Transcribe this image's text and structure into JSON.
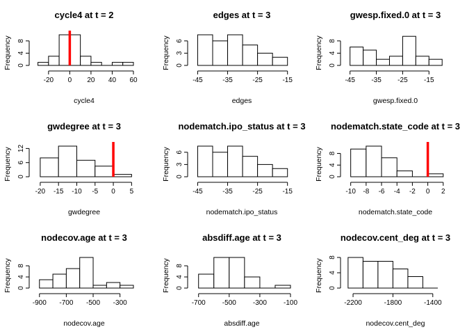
{
  "chart_data": [
    {
      "type": "histogram",
      "title": "cycle4 at t = 2",
      "xlabel": "cycle4",
      "ylabel": "Frequency",
      "bins": [
        [
          -30,
          -20
        ],
        [
          -20,
          -10
        ],
        [
          -10,
          0
        ],
        [
          0,
          10
        ],
        [
          10,
          20
        ],
        [
          20,
          30
        ],
        [
          30,
          40
        ],
        [
          40,
          50
        ],
        [
          50,
          60
        ]
      ],
      "counts": [
        1,
        3,
        10,
        10,
        3,
        1,
        0,
        1,
        1
      ],
      "x_ticks": [
        -20,
        0,
        20,
        40,
        60
      ],
      "y_ticks": [
        0,
        4,
        8
      ],
      "xlim": [
        -33,
        60
      ],
      "ylim": [
        0,
        10
      ],
      "observed_line": 0,
      "observed_line_color": "#ff0000"
    },
    {
      "type": "histogram",
      "title": "edges at t = 3",
      "xlabel": "edges",
      "ylabel": "Frequency",
      "bins": [
        [
          -45,
          -40
        ],
        [
          -40,
          -35
        ],
        [
          -35,
          -30
        ],
        [
          -30,
          -25
        ],
        [
          -25,
          -20
        ],
        [
          -20,
          -15
        ]
      ],
      "counts": [
        7.5,
        6,
        7.5,
        5,
        3,
        2
      ],
      "x_ticks": [
        -45,
        -35,
        -25,
        -15
      ],
      "y_ticks": [
        0,
        3,
        6
      ],
      "xlim": [
        -46.5,
        -14
      ],
      "ylim": [
        0,
        7.5
      ]
    },
    {
      "type": "histogram",
      "title": "gwesp.fixed.0 at t = 3",
      "xlabel": "gwesp.fixed.0",
      "ylabel": "Frequency",
      "bins": [
        [
          -45,
          -40
        ],
        [
          -40,
          -35
        ],
        [
          -35,
          -30
        ],
        [
          -30,
          -25
        ],
        [
          -25,
          -20
        ],
        [
          -20,
          -15
        ],
        [
          -15,
          -10
        ]
      ],
      "counts": [
        6,
        5,
        2,
        3,
        9.5,
        3,
        2
      ],
      "x_ticks": [
        -45,
        -35,
        -25,
        -15
      ],
      "y_ticks": [
        0,
        4,
        8
      ],
      "xlim": [
        -46.5,
        -9
      ],
      "ylim": [
        0,
        10
      ]
    },
    {
      "type": "histogram",
      "title": "gwdegree at t = 3",
      "xlabel": "gwdegree",
      "ylabel": "Frequency",
      "bins": [
        [
          -20,
          -15
        ],
        [
          -15,
          -10
        ],
        [
          -10,
          -5
        ],
        [
          -5,
          0
        ],
        [
          0,
          5
        ]
      ],
      "counts": [
        8,
        13,
        7,
        4.5,
        1
      ],
      "x_ticks": [
        -20,
        -15,
        -10,
        -5,
        0,
        5
      ],
      "y_ticks": [
        0,
        6,
        12
      ],
      "xlim": [
        -21.5,
        5.5
      ],
      "ylim": [
        0,
        13
      ],
      "observed_line": 0,
      "observed_line_color": "#ff0000"
    },
    {
      "type": "histogram",
      "title": "nodematch.ipo_status at t = 3",
      "xlabel": "nodematch.ipo_status",
      "ylabel": "Frequency",
      "bins": [
        [
          -45,
          -40
        ],
        [
          -40,
          -35
        ],
        [
          -35,
          -30
        ],
        [
          -30,
          -25
        ],
        [
          -25,
          -20
        ],
        [
          -20,
          -15
        ]
      ],
      "counts": [
        7.5,
        6,
        7.5,
        5,
        3,
        2
      ],
      "x_ticks": [
        -45,
        -35,
        -25,
        -15
      ],
      "y_ticks": [
        0,
        3,
        6
      ],
      "xlim": [
        -46.5,
        -14
      ],
      "ylim": [
        0,
        7.5
      ]
    },
    {
      "type": "histogram",
      "title": "nodematch.state_code at t = 3",
      "xlabel": "nodematch.state_code",
      "ylabel": "Frequency",
      "bins": [
        [
          -10,
          -8
        ],
        [
          -8,
          -6
        ],
        [
          -6,
          -4
        ],
        [
          -4,
          -2
        ],
        [
          -2,
          0
        ],
        [
          0,
          2
        ]
      ],
      "counts": [
        9.5,
        10.5,
        6.5,
        2,
        0,
        1
      ],
      "x_ticks": [
        -10,
        -8,
        -6,
        -4,
        -2,
        0,
        2
      ],
      "y_ticks": [
        0,
        4,
        8
      ],
      "xlim": [
        -10.6,
        2.2
      ],
      "ylim": [
        0,
        10.5
      ],
      "observed_line": 0,
      "observed_line_color": "#ff0000"
    },
    {
      "type": "histogram",
      "title": "nodecov.age at t = 3",
      "xlabel": "nodecov.age",
      "ylabel": "Frequency",
      "bins": [
        [
          -900,
          -800
        ],
        [
          -800,
          -700
        ],
        [
          -700,
          -600
        ],
        [
          -600,
          -500
        ],
        [
          -500,
          -400
        ],
        [
          -400,
          -300
        ],
        [
          -300,
          -200
        ]
      ],
      "counts": [
        3,
        5,
        7,
        11,
        1,
        2,
        1
      ],
      "x_ticks": [
        -900,
        -700,
        -500,
        -300
      ],
      "y_ticks": [
        0,
        4,
        8
      ],
      "xlim": [
        -935,
        -200
      ],
      "ylim": [
        0,
        11
      ]
    },
    {
      "type": "histogram",
      "title": "absdiff.age at t = 3",
      "xlabel": "absdiff.age",
      "ylabel": "Frequency",
      "bins": [
        [
          -700,
          -600
        ],
        [
          -600,
          -500
        ],
        [
          -500,
          -400
        ],
        [
          -400,
          -300
        ],
        [
          -300,
          -200
        ],
        [
          -200,
          -100
        ]
      ],
      "counts": [
        5,
        11,
        11,
        4,
        0,
        1
      ],
      "x_ticks": [
        -700,
        -500,
        -300,
        -100
      ],
      "y_ticks": [
        0,
        4,
        8
      ],
      "xlim": [
        -735,
        -100
      ],
      "ylim": [
        0,
        11
      ]
    },
    {
      "type": "histogram",
      "title": "nodecov.cent_deg at t = 3",
      "xlabel": "nodecov.cent_deg",
      "ylabel": "Frequency",
      "bins": [
        [
          -2250,
          -2100
        ],
        [
          -2100,
          -1950
        ],
        [
          -1950,
          -1800
        ],
        [
          -1800,
          -1650
        ],
        [
          -1650,
          -1500
        ],
        [
          -1500,
          -1350
        ]
      ],
      "counts": [
        8,
        7,
        7,
        5,
        3,
        0
      ],
      "x_ticks": [
        -2200,
        -1800,
        -1400
      ],
      "y_ticks": [
        0,
        4,
        8
      ],
      "xlim": [
        -2270,
        -1280
      ],
      "ylim": [
        0,
        8
      ]
    }
  ]
}
